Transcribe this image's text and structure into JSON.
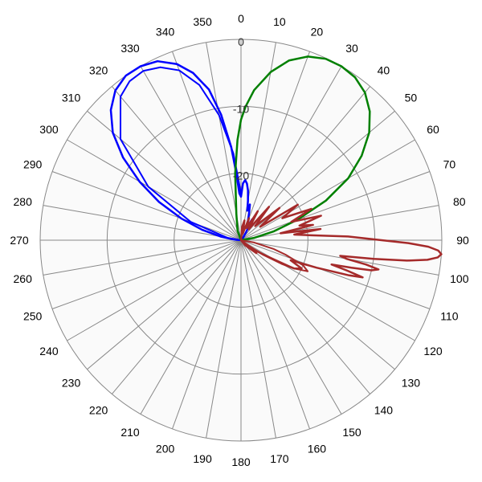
{
  "chart_data": {
    "type": "polar-line",
    "title": "",
    "angle_direction": "clockwise",
    "zero_direction": "top",
    "angle_tick_labels": [
      "0",
      "10",
      "20",
      "30",
      "40",
      "50",
      "60",
      "70",
      "80",
      "90",
      "100",
      "110",
      "120",
      "130",
      "140",
      "150",
      "160",
      "170",
      "180",
      "190",
      "200",
      "210",
      "220",
      "230",
      "240",
      "250",
      "260",
      "270",
      "280",
      "290",
      "300",
      "310",
      "320",
      "330",
      "340",
      "350"
    ],
    "radial_axis": {
      "range": [
        -30,
        0
      ],
      "tick_values": [
        0,
        -10,
        -20
      ],
      "tick_labels": [
        "0",
        "-10",
        "-20"
      ],
      "label_angle_deg": 0
    },
    "grid": true,
    "background_color": "#fafafa",
    "grid_color": "#888888",
    "series": [
      {
        "color": "#0000ff",
        "points": [
          [
            270,
            -30
          ],
          [
            275,
            -29
          ],
          [
            280,
            -27
          ],
          [
            285,
            -24
          ],
          [
            290,
            -20.5
          ],
          [
            295,
            -16.5
          ],
          [
            300,
            -12.5
          ],
          [
            305,
            -8.5
          ],
          [
            310,
            -5
          ],
          [
            315,
            -2.5
          ],
          [
            320,
            -0.8
          ],
          [
            325,
            0
          ],
          [
            330,
            0
          ],
          [
            335,
            -0.5
          ],
          [
            340,
            -2
          ],
          [
            344,
            -4
          ],
          [
            348,
            -7
          ],
          [
            351,
            -11
          ],
          [
            354,
            -16
          ],
          [
            356,
            -20
          ],
          [
            358,
            -23
          ],
          [
            0,
            -23.5
          ],
          [
            2,
            -21.5
          ],
          [
            4,
            -21
          ],
          [
            6,
            -21.5
          ],
          [
            8,
            -22.5
          ],
          [
            10,
            -24
          ],
          [
            12,
            -25.5
          ],
          [
            14,
            -24.5
          ],
          [
            16,
            -25.5
          ],
          [
            20,
            -27
          ],
          [
            24,
            -28
          ],
          [
            28,
            -26.5
          ],
          [
            32,
            -28.5
          ],
          [
            40,
            -29.5
          ],
          [
            50,
            -30
          ]
        ],
        "points_inner": [
          [
            270,
            -30
          ],
          [
            280,
            -28
          ],
          [
            290,
            -22
          ],
          [
            300,
            -14
          ],
          [
            310,
            -6.5
          ],
          [
            320,
            -2
          ],
          [
            325,
            -1
          ],
          [
            330,
            -0.8
          ],
          [
            335,
            -1.5
          ],
          [
            340,
            -3
          ],
          [
            345,
            -6
          ],
          [
            350,
            -11
          ],
          [
            355,
            -17
          ],
          [
            360,
            -23
          ]
        ]
      },
      {
        "color": "#008000",
        "points": [
          [
            330,
            -30
          ],
          [
            340,
            -28.5
          ],
          [
            350,
            -26
          ],
          [
            355,
            -20
          ],
          [
            358,
            -15
          ],
          [
            0,
            -12
          ],
          [
            2,
            -10
          ],
          [
            5,
            -7.5
          ],
          [
            10,
            -4.5
          ],
          [
            15,
            -2.2
          ],
          [
            20,
            -0.8
          ],
          [
            25,
            -0.1
          ],
          [
            30,
            0
          ],
          [
            35,
            -0.3
          ],
          [
            40,
            -1.2
          ],
          [
            45,
            -2.8
          ],
          [
            50,
            -5
          ],
          [
            55,
            -8
          ],
          [
            60,
            -11.5
          ],
          [
            65,
            -16
          ],
          [
            70,
            -21
          ],
          [
            75,
            -25
          ],
          [
            80,
            -28
          ],
          [
            85,
            -30
          ]
        ]
      },
      {
        "color": "#a52a2a",
        "points": [
          [
            0,
            -30
          ],
          [
            5,
            -28
          ],
          [
            10,
            -27
          ],
          [
            15,
            -29
          ],
          [
            20,
            -26.5
          ],
          [
            25,
            -28
          ],
          [
            30,
            -25
          ],
          [
            35,
            -28
          ],
          [
            40,
            -23.5
          ],
          [
            45,
            -27
          ],
          [
            50,
            -22.5
          ],
          [
            55,
            -26.5
          ],
          [
            58,
            -20
          ],
          [
            62,
            -23
          ],
          [
            66,
            -18.5
          ],
          [
            70,
            -22
          ],
          [
            73,
            -17.5
          ],
          [
            76,
            -21
          ],
          [
            78,
            -19
          ],
          [
            80,
            -24
          ],
          [
            82,
            -18
          ],
          [
            84,
            -22
          ],
          [
            86,
            -19.5
          ],
          [
            88,
            -14
          ],
          [
            90,
            -9
          ],
          [
            91,
            -5
          ],
          [
            92,
            -2
          ],
          [
            93,
            -0.5
          ],
          [
            94,
            0
          ],
          [
            95,
            -0.5
          ],
          [
            96,
            -2
          ],
          [
            97,
            -5
          ],
          [
            98,
            -10
          ],
          [
            99,
            -15
          ],
          [
            100,
            -14
          ],
          [
            101,
            -11
          ],
          [
            102,
            -9
          ],
          [
            103,
            -10
          ],
          [
            104,
            -13
          ],
          [
            105,
            -16
          ],
          [
            106,
            -13.5
          ],
          [
            107,
            -11
          ],
          [
            108,
            -13
          ],
          [
            110,
            -18
          ],
          [
            112,
            -22
          ],
          [
            115,
            -20
          ],
          [
            118,
            -21
          ],
          [
            120,
            -23
          ],
          [
            123,
            -26
          ],
          [
            126,
            -28
          ],
          [
            130,
            -27
          ],
          [
            140,
            -29
          ],
          [
            160,
            -30
          ]
        ],
        "points_secondary": [
          [
            90,
            -30
          ],
          [
            100,
            -28
          ],
          [
            105,
            -25
          ],
          [
            108,
            -23
          ],
          [
            112,
            -20
          ],
          [
            115,
            -19
          ],
          [
            118,
            -21
          ],
          [
            125,
            -27
          ],
          [
            140,
            -30
          ]
        ]
      }
    ]
  }
}
